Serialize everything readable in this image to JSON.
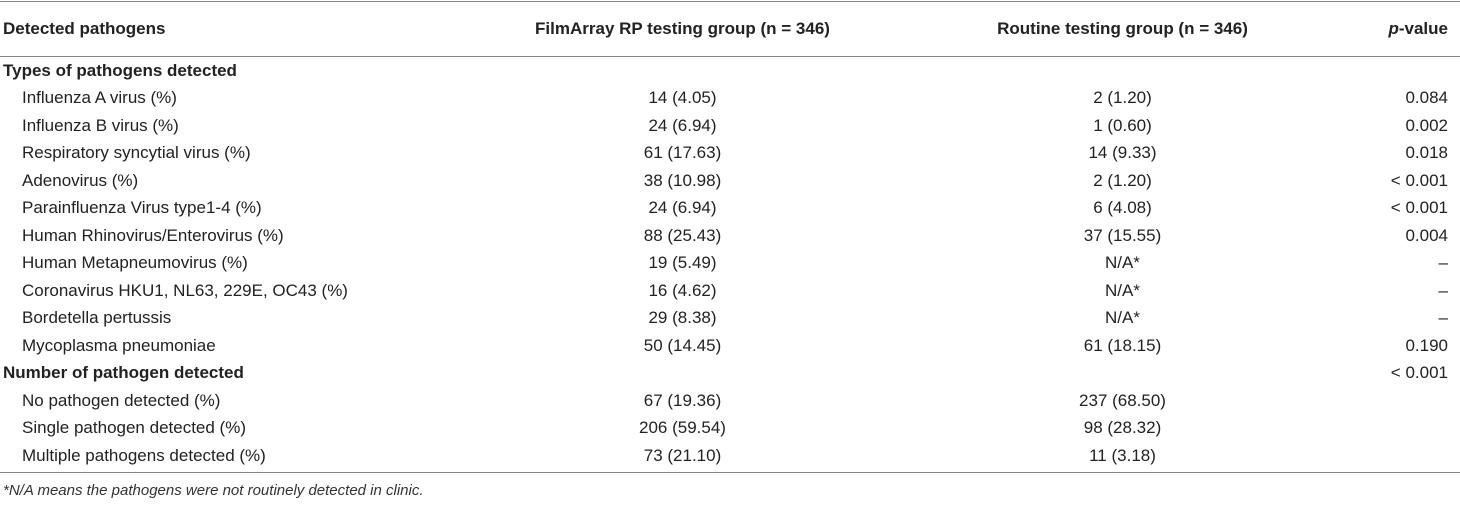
{
  "header": [
    "Detected pathogens",
    "FilmArray RP testing group (n = 346)",
    "Routine testing group (n = 346)",
    {
      "italic": "p",
      "text": "-value"
    }
  ],
  "sections": [
    {
      "title": "Types of pathogens detected",
      "rows": [
        [
          "Influenza A virus (%)",
          "14 (4.05)",
          "2 (1.20)",
          "0.084"
        ],
        [
          "Influenza B virus (%)",
          "24 (6.94)",
          "1 (0.60)",
          "0.002"
        ],
        [
          "Respiratory syncytial virus (%)",
          "61 (17.63)",
          "14 (9.33)",
          "0.018"
        ],
        [
          "Adenovirus (%)",
          "38 (10.98)",
          "2 (1.20)",
          "< 0.001"
        ],
        [
          "Parainfluenza Virus type1-4 (%)",
          "24 (6.94)",
          "6 (4.08)",
          "< 0.001"
        ],
        [
          "Human Rhinovirus/Enterovirus (%)",
          "88 (25.43)",
          "37 (15.55)",
          "0.004"
        ],
        [
          "Human Metapneumovirus (%)",
          "19 (5.49)",
          "N/A*",
          "–"
        ],
        [
          "Coronavirus HKU1, NL63, 229E, OC43 (%)",
          "16 (4.62)",
          "N/A*",
          "–"
        ],
        [
          "Bordetella pertussis",
          "29 (8.38)",
          "N/A*",
          "–"
        ],
        [
          "Mycoplasma pneumoniae",
          "50 (14.45)",
          "61 (18.15)",
          "0.190"
        ]
      ]
    },
    {
      "title": "Number of pathogen detected",
      "p_value": "< 0.001",
      "rows": [
        [
          "No pathogen detected (%)",
          "67 (19.36)",
          "237 (68.50)"
        ],
        [
          "Single pathogen detected (%)",
          "206 (59.54)",
          "98 (28.32)"
        ],
        [
          "Multiple pathogens detected (%)",
          "73 (21.10)",
          "11 (3.18)"
        ]
      ]
    }
  ],
  "footnote": "*N/A means the pathogens were not routinely detected in clinic."
}
